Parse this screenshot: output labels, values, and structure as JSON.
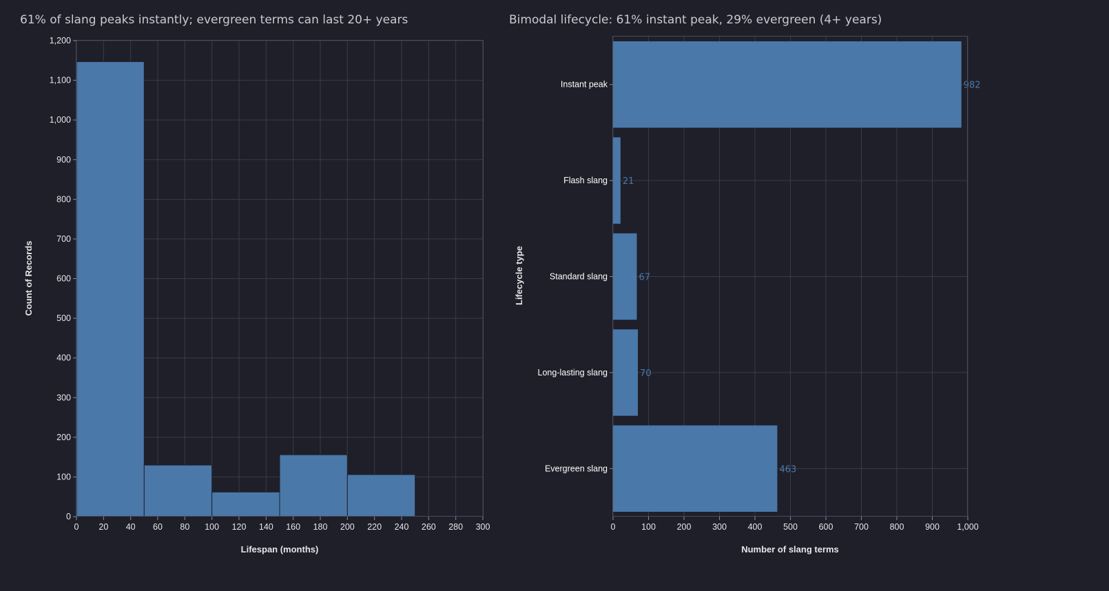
{
  "chart_data": [
    {
      "type": "bar",
      "subtype": "histogram",
      "title": "61% of slang peaks instantly; evergreen terms can last 20+ years",
      "xlabel": "Lifespan (months)",
      "ylabel": "Count of Records",
      "xlim": [
        0,
        300
      ],
      "ylim": [
        0,
        1200
      ],
      "x_ticks": [
        0,
        20,
        40,
        60,
        80,
        100,
        120,
        140,
        160,
        180,
        200,
        220,
        240,
        260,
        280,
        300
      ],
      "y_ticks": [
        0,
        100,
        200,
        300,
        400,
        500,
        600,
        700,
        800,
        900,
        1000,
        1100,
        1200
      ],
      "y_tick_labels": [
        "0",
        "100",
        "200",
        "300",
        "400",
        "500",
        "600",
        "700",
        "800",
        "900",
        "1,000",
        "1,100",
        "1,200"
      ],
      "bins": [
        {
          "start": 0,
          "end": 50,
          "value": 1147
        },
        {
          "start": 50,
          "end": 100,
          "value": 130
        },
        {
          "start": 100,
          "end": 150,
          "value": 62
        },
        {
          "start": 150,
          "end": 200,
          "value": 156
        },
        {
          "start": 200,
          "end": 250,
          "value": 106
        },
        {
          "start": 250,
          "end": 300,
          "value": 2
        }
      ],
      "grid": true,
      "color": "#4a78a8"
    },
    {
      "type": "bar",
      "orientation": "horizontal",
      "title": "Bimodal lifecycle: 61% instant peak, 29% evergreen (4+ years)",
      "xlabel": "Number of slang terms",
      "ylabel": "Lifecycle type",
      "xlim": [
        0,
        1000
      ],
      "x_ticks": [
        0,
        100,
        200,
        300,
        400,
        500,
        600,
        700,
        800,
        900,
        1000
      ],
      "x_tick_labels": [
        "0",
        "100",
        "200",
        "300",
        "400",
        "500",
        "600",
        "700",
        "800",
        "900",
        "1,000"
      ],
      "categories": [
        "Instant peak",
        "Flash slang",
        "Standard slang",
        "Long-lasting slang",
        "Evergreen slang"
      ],
      "values": [
        982,
        21,
        67,
        70,
        463
      ],
      "grid": true,
      "color": "#4a78a8"
    }
  ],
  "colors": {
    "background": "#1f1f29",
    "bar": "#4a78a8",
    "grid": "#3a3b4a"
  }
}
